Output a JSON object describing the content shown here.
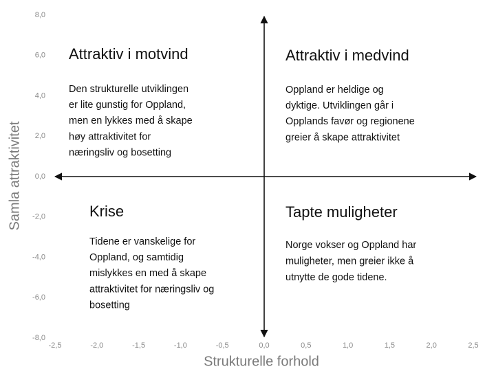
{
  "chart_data": {
    "type": "quadrant",
    "x_label": "Strukturelle forhold",
    "y_label": "Samla attraktivitet",
    "xlim": [
      -2.5,
      2.5
    ],
    "ylim": [
      -8,
      8
    ],
    "xticks": [
      {
        "value": -2.5,
        "label": "-2,5"
      },
      {
        "value": -2,
        "label": "-2,0"
      },
      {
        "value": -1.5,
        "label": "-1,5"
      },
      {
        "value": -1,
        "label": "-1,0"
      },
      {
        "value": -0.5,
        "label": "-0,5"
      },
      {
        "value": 0,
        "label": "0,0"
      },
      {
        "value": 0.5,
        "label": "0,5"
      },
      {
        "value": 1,
        "label": "1,0"
      },
      {
        "value": 1.5,
        "label": "1,5"
      },
      {
        "value": 2,
        "label": "2,0"
      },
      {
        "value": 2.5,
        "label": "2,5"
      }
    ],
    "yticks": [
      {
        "value": 8,
        "label": "8,0"
      },
      {
        "value": 6,
        "label": "6,0"
      },
      {
        "value": 4,
        "label": "4,0"
      },
      {
        "value": 2,
        "label": "2,0"
      },
      {
        "value": 0,
        "label": "0,0"
      },
      {
        "value": -2,
        "label": "-2,0"
      },
      {
        "value": -4,
        "label": "-4,0"
      },
      {
        "value": -6,
        "label": "-6,0"
      },
      {
        "value": -8,
        "label": "-8,0"
      }
    ],
    "quadrants": [
      {
        "title": "Attraktiv i motvind",
        "lines": [
          "Den strukturelle utviklingen",
          "er lite gunstig for Oppland,",
          "men en lykkes med å skape",
          "høy attraktivitet for",
          "næringsliv og bosetting"
        ]
      },
      {
        "title": "Attraktiv i medvind",
        "lines": [
          "Oppland er heldige og",
          "dyktige. Utviklingen går i",
          "Opplands favør og regionene",
          "greier å skape attraktivitet"
        ]
      },
      {
        "title": "Krise",
        "lines": [
          "Tidene er vanskelige for",
          "Oppland, og samtidig",
          "mislykkes en med å skape",
          "attraktivitet for næringsliv og",
          "bosetting"
        ]
      },
      {
        "title": "Tapte muligheter",
        "lines": [
          "Norge vokser og Oppland har",
          "muligheter, men greier ikke å",
          "utnytte de gode tidene."
        ]
      }
    ]
  }
}
